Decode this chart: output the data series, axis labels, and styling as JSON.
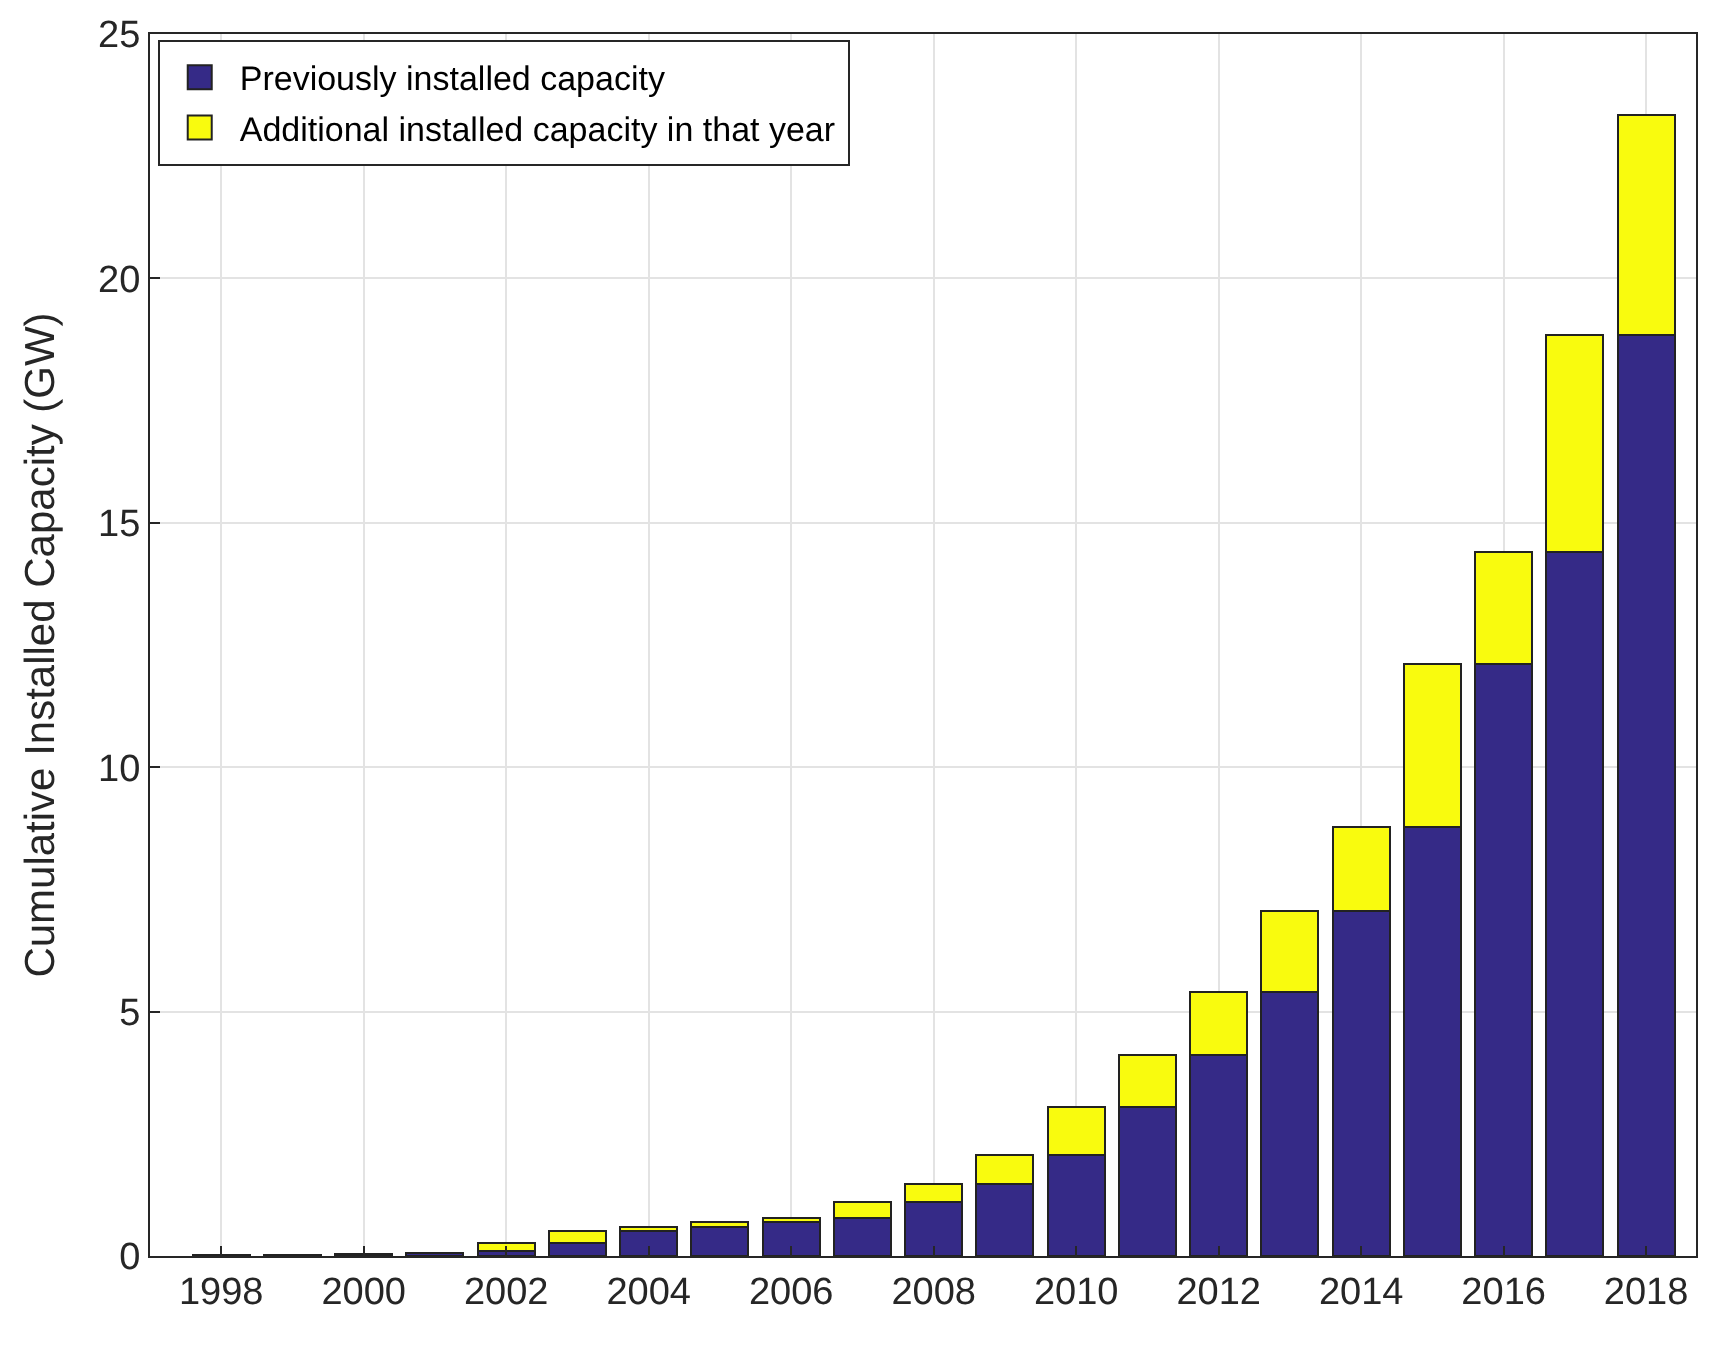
{
  "chart_data": {
    "type": "bar",
    "stacked": true,
    "ylabel": "Cumulative Installed Capacity (GW)",
    "x": [
      1998,
      1999,
      2000,
      2001,
      2002,
      2003,
      2004,
      2005,
      2006,
      2007,
      2008,
      2009,
      2010,
      2011,
      2012,
      2013,
      2014,
      2015,
      2016,
      2017,
      2018
    ],
    "series": [
      {
        "name": "Previously installed capacity",
        "color": "#352a87",
        "values": [
          0.03,
          0.03,
          0.04,
          0.07,
          0.1,
          0.26,
          0.52,
          0.6,
          0.69,
          0.78,
          1.1,
          1.47,
          2.06,
          3.04,
          4.11,
          5.41,
          7.05,
          8.77,
          12.12,
          14.41,
          18.84
        ]
      },
      {
        "name": "Additional installed capacity in that year",
        "color": "#f9fb0e",
        "values": [
          null,
          null,
          null,
          null,
          0.16,
          0.26,
          0.08,
          0.09,
          0.09,
          0.32,
          0.37,
          0.59,
          0.98,
          1.07,
          1.3,
          1.64,
          1.72,
          3.35,
          2.29,
          4.43,
          4.5
        ]
      }
    ],
    "xlim": [
      1997,
      2018.7
    ],
    "xticks": [
      1998,
      2000,
      2002,
      2004,
      2006,
      2008,
      2010,
      2012,
      2014,
      2016,
      2018
    ],
    "ylim": [
      0,
      25
    ],
    "yticks": [
      0,
      5,
      10,
      15,
      20,
      25
    ],
    "grid": true,
    "legend": "top left"
  }
}
